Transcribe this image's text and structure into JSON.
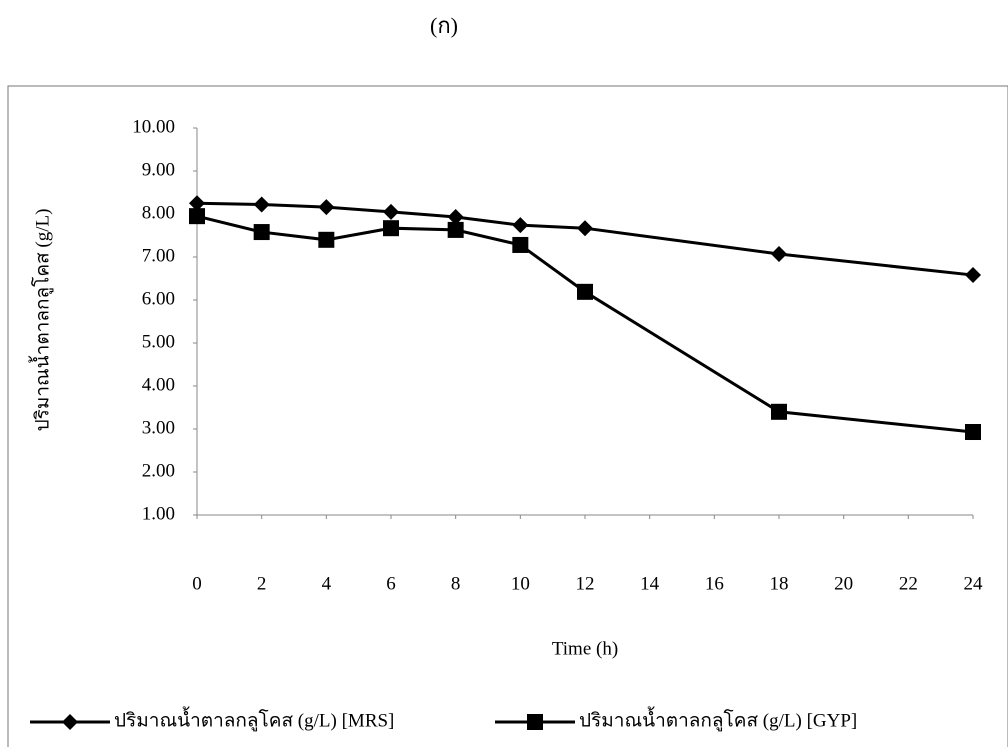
{
  "chart_data": {
    "type": "line",
    "title": "(ก)",
    "x_label": "Time (h)",
    "y_label": "ปริมาณน้ำตาลกลูโคส (g/L)",
    "xlim": [
      0,
      24
    ],
    "xticks": [
      0,
      2,
      4,
      6,
      8,
      10,
      12,
      14,
      16,
      18,
      20,
      22,
      24
    ],
    "ylim": [
      1,
      10
    ],
    "yticks": [
      {
        "value": 1,
        "label": "1.00"
      },
      {
        "value": 2,
        "label": "2.00"
      },
      {
        "value": 3,
        "label": "3.00"
      },
      {
        "value": 4,
        "label": "4.00"
      },
      {
        "value": 5,
        "label": "5.00"
      },
      {
        "value": 6,
        "label": "6.00"
      },
      {
        "value": 7,
        "label": "7.00"
      },
      {
        "value": 8,
        "label": "8.00"
      },
      {
        "value": 9,
        "label": "9.00"
      },
      {
        "value": 10,
        "label": "10.00"
      }
    ],
    "x": [
      0,
      2,
      4,
      6,
      8,
      10,
      12,
      18,
      24
    ],
    "series": [
      {
        "name": "ปริมาณน้ำตาลกลูโคส (g/L) [MRS]",
        "color": "#000000",
        "marker": "diamond",
        "values": [
          8.25,
          8.22,
          8.16,
          8.05,
          7.93,
          7.74,
          7.67,
          7.07,
          6.58
        ]
      },
      {
        "name": "ปริมาณน้ำตาลกลูโคส (g/L) [GYP]",
        "color": "#000000",
        "marker": "square",
        "values": [
          7.95,
          7.58,
          7.4,
          7.67,
          7.63,
          7.28,
          6.19,
          3.4,
          2.93
        ]
      }
    ],
    "legend": "bottom"
  }
}
